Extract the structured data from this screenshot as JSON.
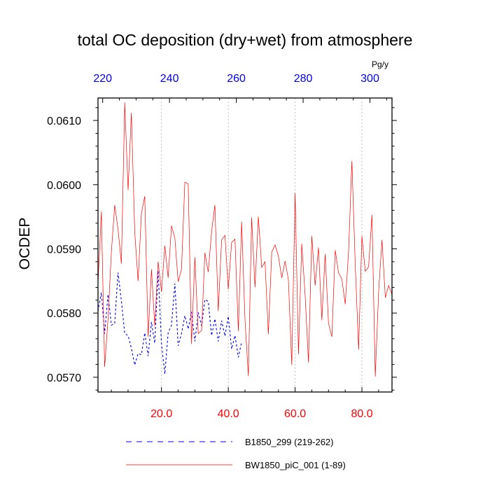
{
  "chart_data": {
    "type": "line",
    "title": "total OC deposition (dry+wet) from atmosphere",
    "units": "Pg/y",
    "ylabel": "OCDEP",
    "xlabel": "",
    "xlim": [
      1,
      89
    ],
    "ylim": [
      0.05677,
      0.06135
    ],
    "top_axis": {
      "color": "#0000ff",
      "range": [
        218.6,
        306.6
      ],
      "ticks": [
        220,
        240,
        260,
        280,
        300
      ],
      "tick_labels": [
        "220",
        "240",
        "260",
        "280",
        "300"
      ]
    },
    "bottom_axis": {
      "color": "#ff0000",
      "ticks": [
        20,
        40,
        60,
        80
      ],
      "tick_labels": [
        "20.0",
        "40.0",
        "60.0",
        "80.0"
      ]
    },
    "y_ticks": [
      0.057,
      0.058,
      0.059,
      0.06,
      0.061
    ],
    "y_tick_labels": [
      "0.0570",
      "0.0580",
      "0.0590",
      "0.0600",
      "0.0610"
    ],
    "series": [
      {
        "name": "B1850_299 (219-262)",
        "label": "B1850_299 (219-262)",
        "color": "#0000ff",
        "dash": "3,3",
        "x": [
          1,
          2,
          3,
          4,
          5,
          6,
          7,
          8,
          9,
          10,
          11,
          12,
          13,
          14,
          15,
          16,
          17,
          18,
          19,
          20,
          21,
          22,
          23,
          24,
          25,
          26,
          27,
          28,
          29,
          30,
          31,
          32,
          33,
          34,
          35,
          36,
          37,
          38,
          39,
          40,
          41,
          42,
          43,
          44
        ],
        "values": [
          0.05803,
          0.05832,
          0.05768,
          0.05829,
          0.05781,
          0.05784,
          0.05863,
          0.05819,
          0.05768,
          0.05765,
          0.05745,
          0.05719,
          0.05737,
          0.05735,
          0.05769,
          0.05733,
          0.05786,
          0.05753,
          0.05866,
          0.05751,
          0.05705,
          0.05769,
          0.05781,
          0.05846,
          0.05749,
          0.05768,
          0.05796,
          0.05775,
          0.05802,
          0.05756,
          0.05801,
          0.0578,
          0.05821,
          0.05818,
          0.05765,
          0.05791,
          0.05756,
          0.05788,
          0.05764,
          0.05795,
          0.05744,
          0.05765,
          0.05731,
          0.05755
        ]
      },
      {
        "name": "BW1850_piC_001 (1-89)",
        "label": "BW1850_piC_001 (1-89)",
        "color": "#ff0000",
        "dash": "",
        "x": [
          1,
          2,
          3,
          4,
          5,
          6,
          7,
          8,
          9,
          10,
          11,
          12,
          13,
          14,
          15,
          16,
          17,
          18,
          19,
          20,
          21,
          22,
          23,
          24,
          25,
          26,
          27,
          28,
          29,
          30,
          31,
          32,
          33,
          34,
          35,
          36,
          37,
          38,
          39,
          40,
          41,
          42,
          43,
          44,
          45,
          46,
          47,
          48,
          49,
          50,
          51,
          52,
          53,
          54,
          55,
          56,
          57,
          58,
          59,
          60,
          61,
          62,
          63,
          64,
          65,
          66,
          67,
          68,
          69,
          70,
          71,
          72,
          73,
          74,
          75,
          76,
          77,
          78,
          79,
          80,
          81,
          82,
          83,
          84,
          85,
          86,
          87,
          88,
          89
        ],
        "values": [
          0.05845,
          0.05958,
          0.05716,
          0.0579,
          0.05895,
          0.05968,
          0.05931,
          0.05877,
          0.06128,
          0.05992,
          0.06112,
          0.05926,
          0.0585,
          0.05955,
          0.05982,
          0.05763,
          0.05868,
          0.0578,
          0.0588,
          0.05833,
          0.05905,
          0.05855,
          0.05936,
          0.05917,
          0.05849,
          0.05868,
          0.06004,
          0.06001,
          0.05752,
          0.05887,
          0.05768,
          0.05773,
          0.05894,
          0.05864,
          0.05927,
          0.05968,
          0.05803,
          0.05914,
          0.05921,
          0.05837,
          0.0591,
          0.05915,
          0.05772,
          0.05942,
          0.0579,
          0.05702,
          0.05949,
          0.0584,
          0.0595,
          0.05871,
          0.0588,
          0.05767,
          0.05895,
          0.05906,
          0.05889,
          0.05855,
          0.05881,
          0.05852,
          0.05719,
          0.05987,
          0.05736,
          0.05908,
          0.05828,
          0.05723,
          0.0592,
          0.05843,
          0.05902,
          0.05789,
          0.05892,
          0.05784,
          0.05763,
          0.05898,
          0.05863,
          0.05853,
          0.05814,
          0.05896,
          0.06037,
          0.05876,
          0.05743,
          0.0592,
          0.05865,
          0.05872,
          0.05953,
          0.05701,
          0.05833,
          0.05914,
          0.05824,
          0.05843,
          0.05829
        ]
      }
    ]
  }
}
